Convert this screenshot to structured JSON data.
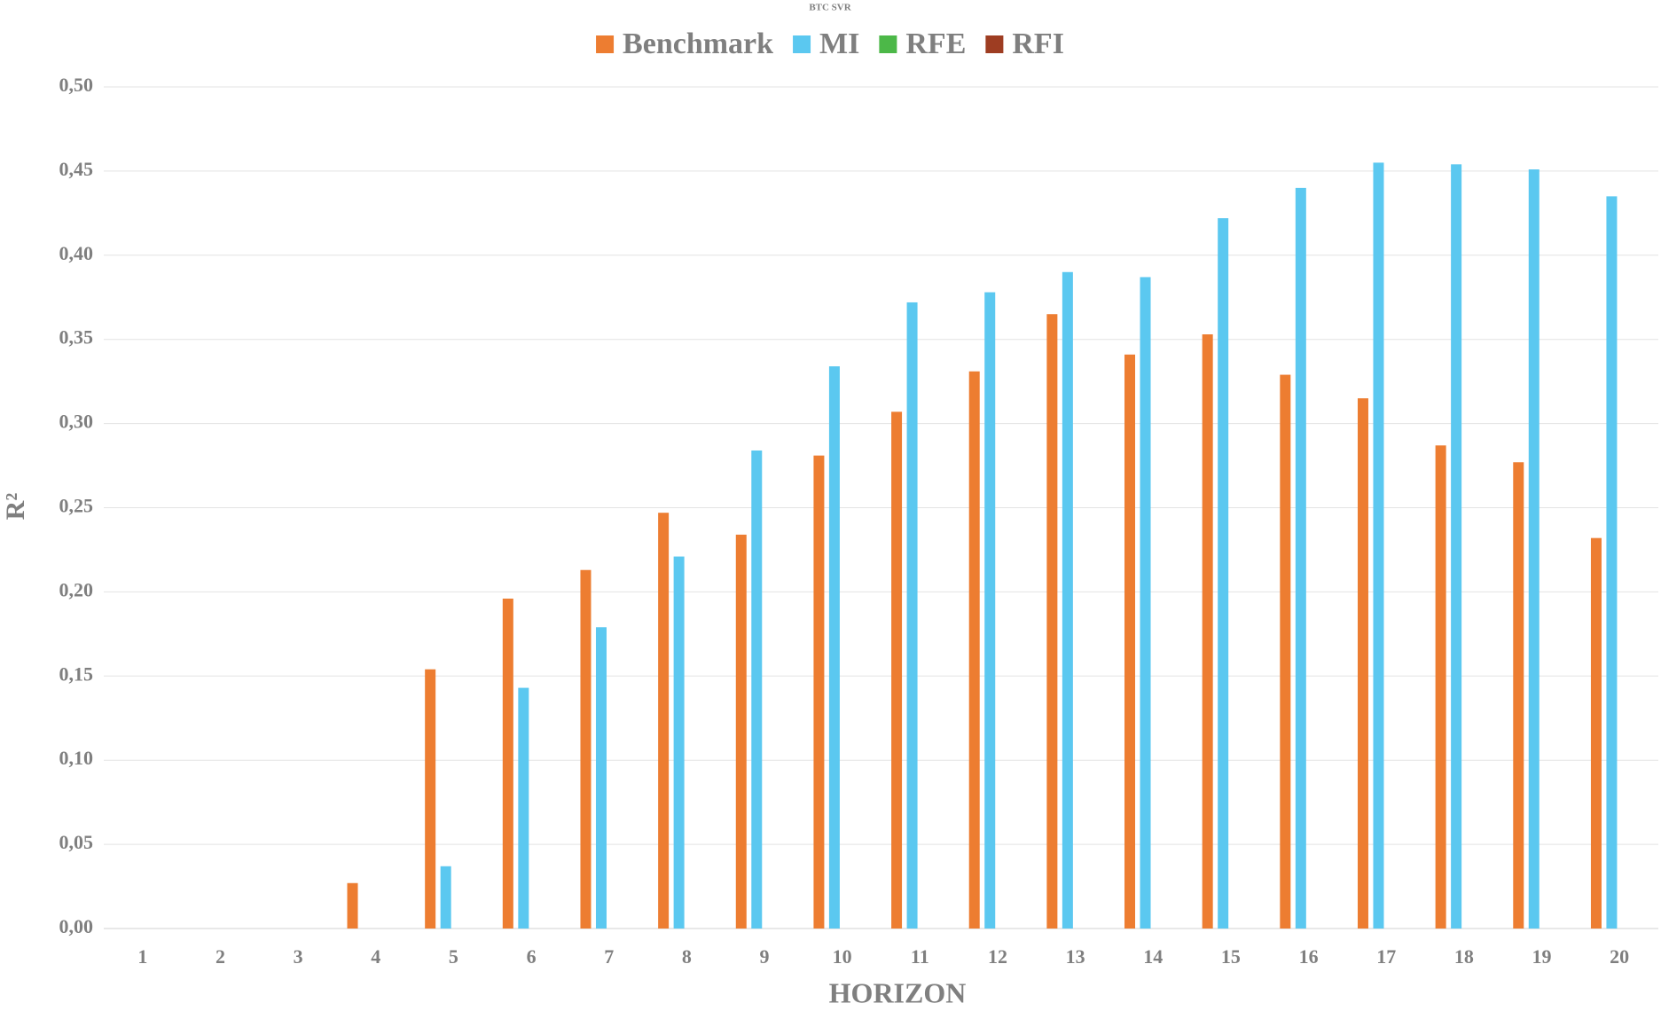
{
  "chart_data": {
    "type": "bar",
    "title": "BTC SVR",
    "x_label": "HORIZON",
    "y_label": "R²",
    "categories": [
      "1",
      "2",
      "3",
      "4",
      "5",
      "6",
      "7",
      "8",
      "9",
      "10",
      "11",
      "12",
      "13",
      "14",
      "15",
      "16",
      "17",
      "18",
      "19",
      "20"
    ],
    "series": [
      {
        "name": "Benchmark",
        "color": "#ed7d31",
        "values": [
          null,
          null,
          null,
          0.027,
          0.154,
          0.196,
          0.213,
          0.247,
          0.234,
          0.281,
          0.307,
          0.331,
          0.365,
          0.341,
          0.353,
          0.329,
          0.315,
          0.287,
          0.277,
          0.232
        ]
      },
      {
        "name": "MI",
        "color": "#5bc8f0",
        "values": [
          null,
          null,
          null,
          null,
          0.037,
          0.143,
          0.179,
          0.221,
          0.284,
          0.334,
          0.372,
          0.378,
          0.39,
          0.387,
          0.422,
          0.44,
          0.455,
          0.454,
          0.451,
          0.435
        ]
      },
      {
        "name": "RFE",
        "color": "#4cb848",
        "values": [
          null,
          null,
          null,
          null,
          null,
          null,
          null,
          null,
          null,
          null,
          null,
          null,
          null,
          null,
          null,
          null,
          null,
          null,
          null,
          null
        ]
      },
      {
        "name": "RFI",
        "color": "#9e3d22",
        "values": [
          null,
          null,
          null,
          null,
          null,
          null,
          null,
          null,
          null,
          null,
          null,
          null,
          null,
          null,
          null,
          null,
          null,
          null,
          null,
          null
        ]
      }
    ],
    "ylim": [
      0,
      0.5
    ],
    "yticks": [
      {
        "value": 0,
        "label": "0,00"
      },
      {
        "value": 0.05,
        "label": "0,05"
      },
      {
        "value": 0.1,
        "label": "0,10"
      },
      {
        "value": 0.15,
        "label": "0,15"
      },
      {
        "value": 0.2,
        "label": "0,20"
      },
      {
        "value": 0.25,
        "label": "0,25"
      },
      {
        "value": 0.3,
        "label": "0,30"
      },
      {
        "value": 0.35,
        "label": "0,35"
      },
      {
        "value": 0.4,
        "label": "0,40"
      },
      {
        "value": 0.45,
        "label": "0,45"
      },
      {
        "value": 0.5,
        "label": "0,50"
      }
    ],
    "grid": true,
    "legend": "top"
  }
}
